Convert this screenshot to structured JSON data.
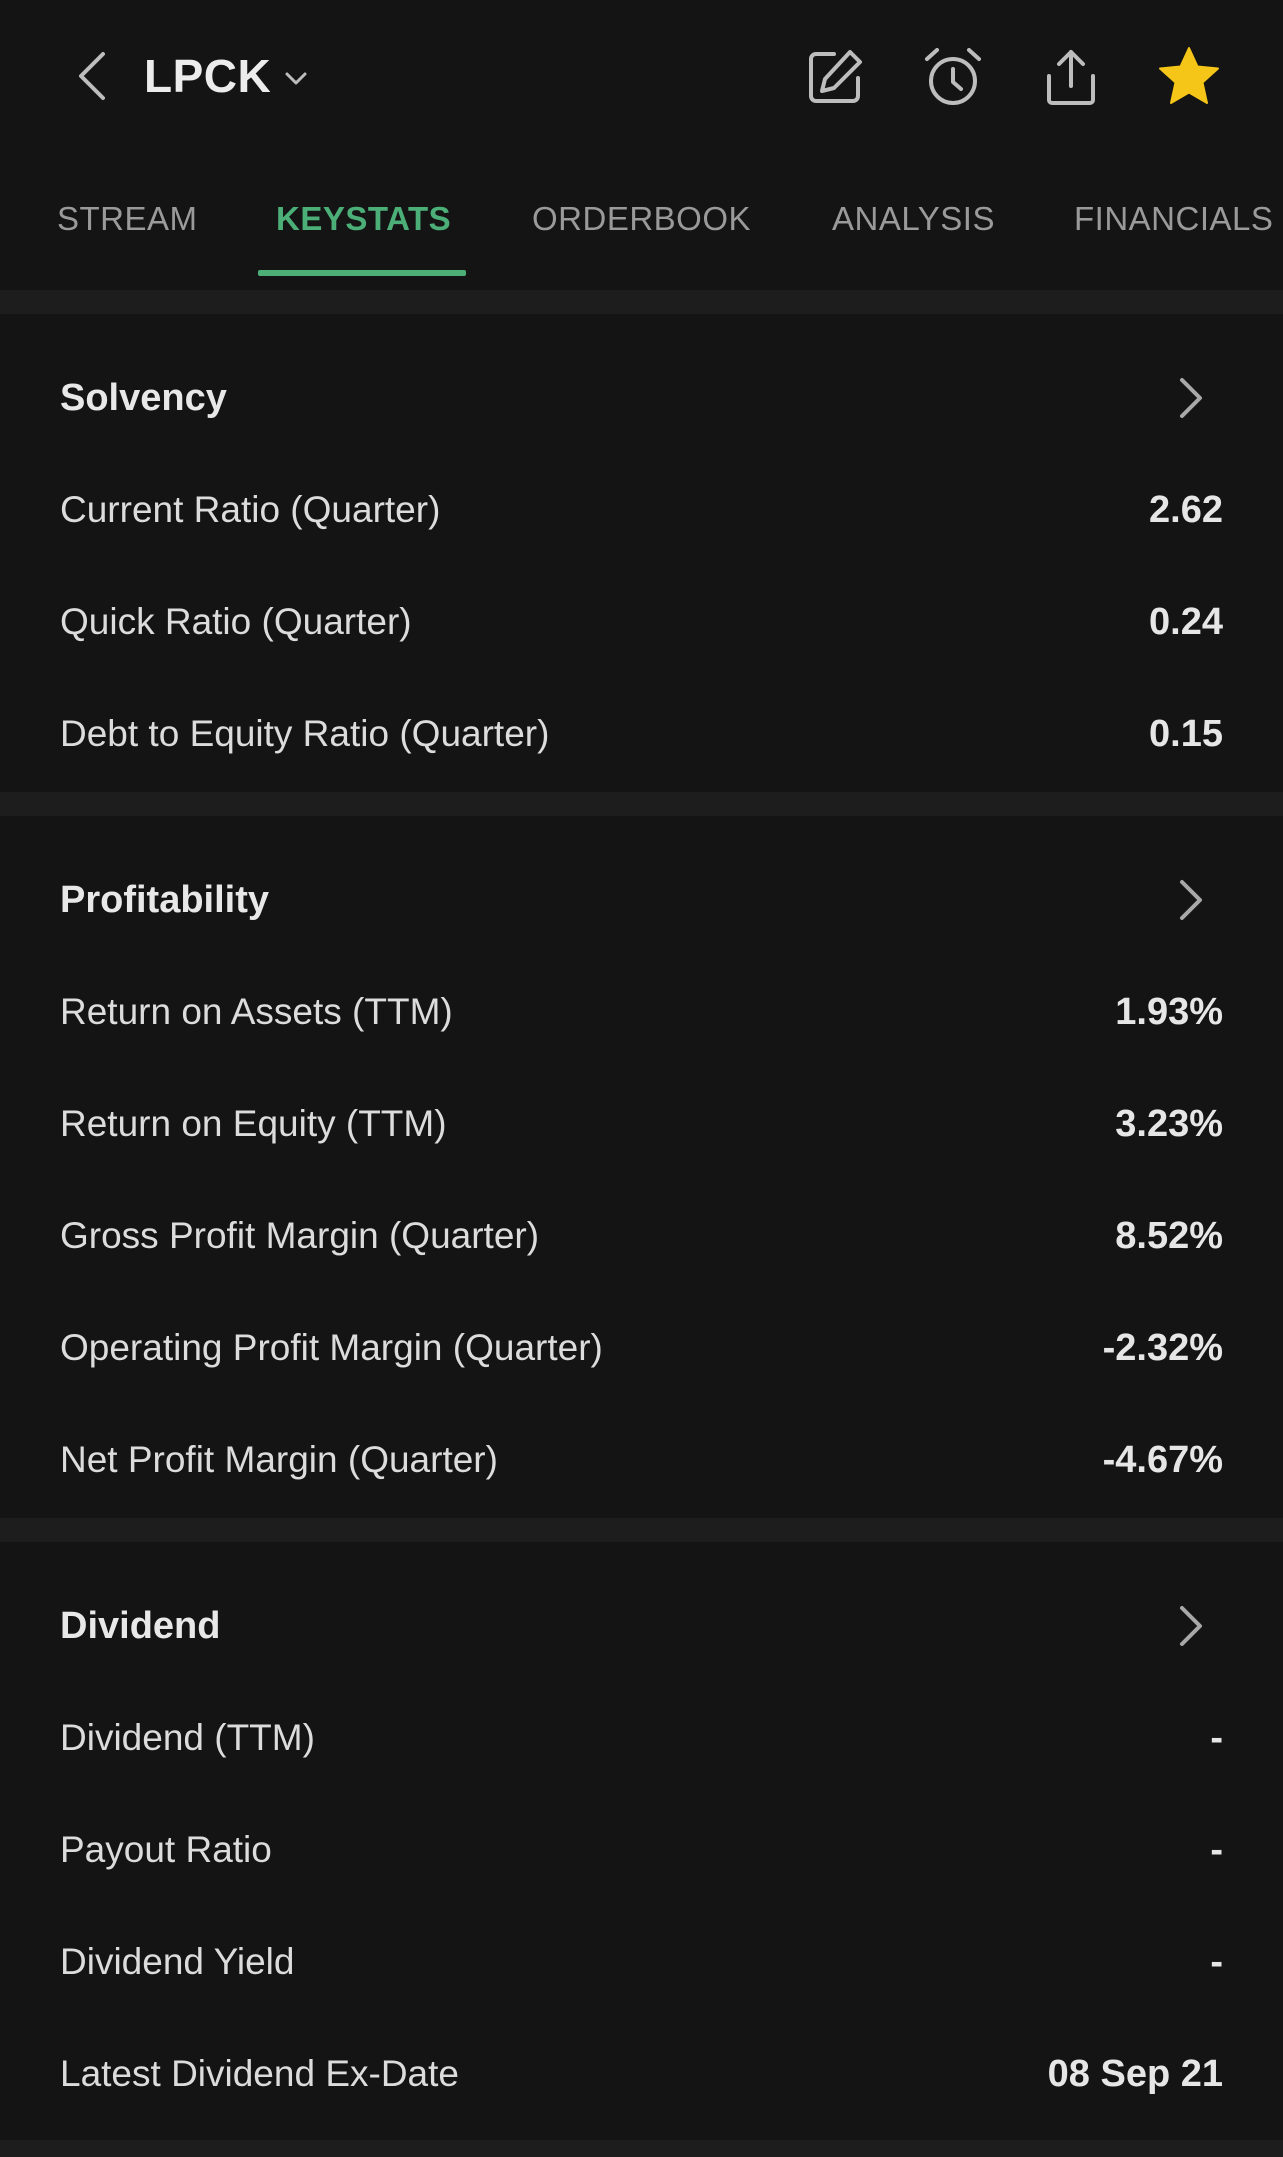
{
  "header": {
    "ticker": "LPCK",
    "icons": {
      "back": "chevron-left-icon",
      "ticker_dropdown": "chevron-down-icon",
      "edit": "edit-icon",
      "alarm": "alarm-clock-icon",
      "share": "share-icon",
      "watchlist": "star-icon"
    },
    "star_color": "#f5c518"
  },
  "tabs": [
    {
      "label": "STREAM",
      "active": false
    },
    {
      "label": "KEYSTATS",
      "active": true
    },
    {
      "label": "ORDERBOOK",
      "active": false
    },
    {
      "label": "ANALYSIS",
      "active": false
    },
    {
      "label": "FINANCIALS",
      "active": false
    }
  ],
  "accent_color": "#4caf78",
  "sections": {
    "solvency": {
      "title": "Solvency",
      "rows": [
        {
          "label": "Current Ratio (Quarter)",
          "value": "2.62"
        },
        {
          "label": "Quick Ratio (Quarter)",
          "value": "0.24"
        },
        {
          "label": "Debt to Equity Ratio (Quarter)",
          "value": "0.15"
        }
      ]
    },
    "profitability": {
      "title": "Profitability",
      "rows": [
        {
          "label": "Return on Assets (TTM)",
          "value": "1.93%"
        },
        {
          "label": "Return on Equity (TTM)",
          "value": "3.23%"
        },
        {
          "label": "Gross Profit Margin (Quarter)",
          "value": "8.52%"
        },
        {
          "label": "Operating Profit Margin (Quarter)",
          "value": "-2.32%"
        },
        {
          "label": "Net Profit Margin (Quarter)",
          "value": "-4.67%"
        }
      ]
    },
    "dividend": {
      "title": "Dividend",
      "rows": [
        {
          "label": "Dividend (TTM)",
          "value": "-"
        },
        {
          "label": "Payout Ratio",
          "value": "-"
        },
        {
          "label": "Dividend Yield",
          "value": "-"
        },
        {
          "label": "Latest Dividend Ex-Date",
          "value": "08 Sep 21"
        }
      ]
    }
  }
}
